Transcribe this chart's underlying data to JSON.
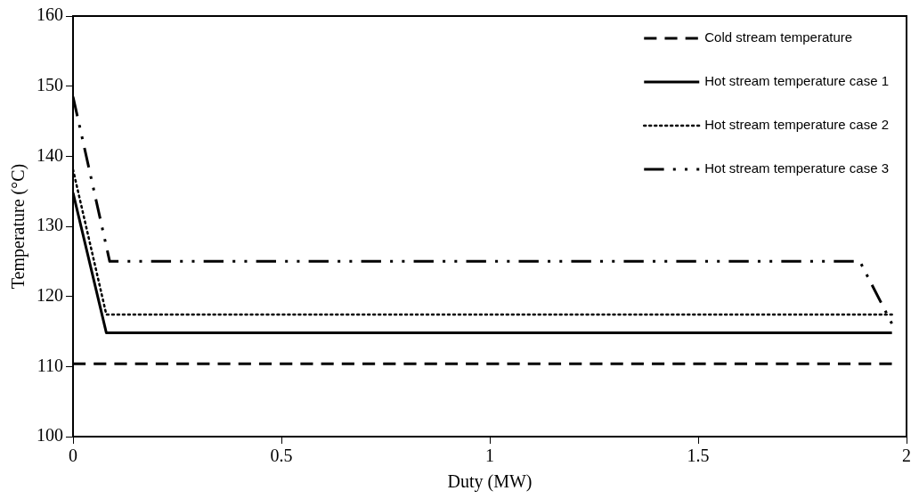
{
  "chart_data": {
    "type": "line",
    "xlabel": "Duty (MW)",
    "ylabel": "Temperature (°C)",
    "xlim": [
      0,
      2
    ],
    "xticks": [
      0,
      0.5,
      1,
      1.5,
      2
    ],
    "ylim": [
      100,
      160
    ],
    "yticks": [
      100,
      110,
      120,
      130,
      140,
      150,
      160
    ],
    "grid": false,
    "legend": "top right",
    "marker": "none",
    "series": [
      {
        "name": "Cold stream temperature",
        "color": "#000000",
        "line_style": "dashed",
        "x": [
          0,
          1.965
        ],
        "values": [
          110.4,
          110.4
        ]
      },
      {
        "name": "Hot stream temperature case 1",
        "color": "#000000",
        "line_style": "solid",
        "x": [
          0,
          0.08,
          1.965
        ],
        "values": [
          134.8,
          114.8,
          114.8
        ]
      },
      {
        "name": "Hot stream temperature case 2",
        "color": "#000000",
        "line_style": "dotted",
        "x": [
          0,
          0.08,
          1.965
        ],
        "values": [
          138.1,
          117.4,
          117.4
        ]
      },
      {
        "name": "Hot stream temperature case 3",
        "color": "#000000",
        "line_style": "dashdotdot",
        "x": [
          0,
          0.088,
          1.888,
          1.965
        ],
        "values": [
          148.5,
          125,
          125,
          116.1
        ]
      }
    ]
  }
}
